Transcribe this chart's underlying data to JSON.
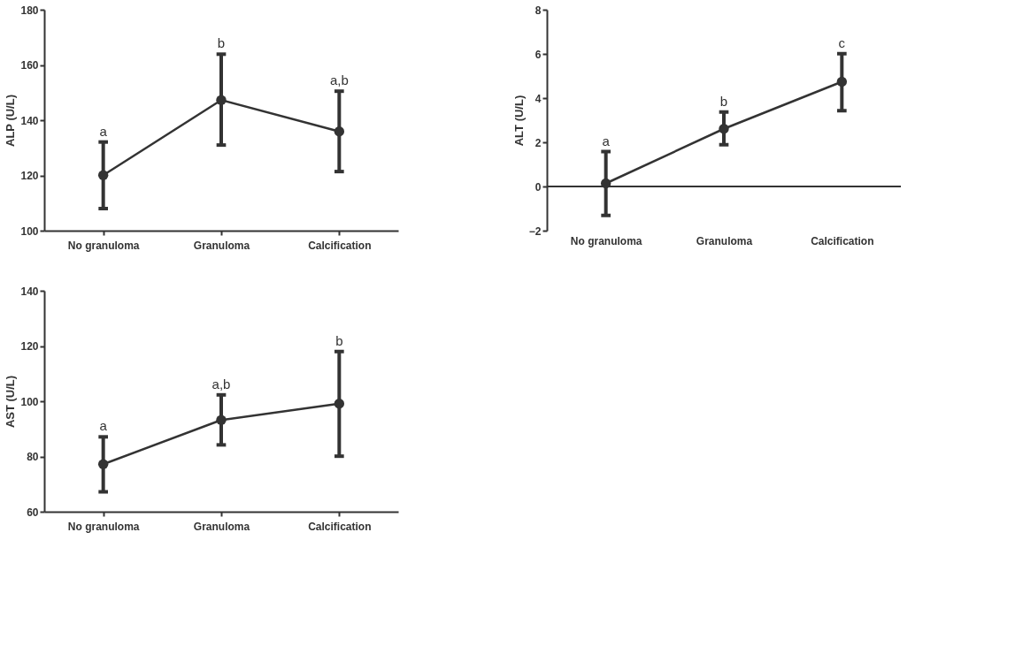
{
  "chart_data": [
    {
      "type": "line",
      "ylabel": "ALP (U/L)",
      "categories": [
        "No granuloma",
        "Granuloma",
        "Calcification"
      ],
      "ylim": [
        100,
        180
      ],
      "yticks": [
        100,
        120,
        140,
        160,
        180
      ],
      "grid": false,
      "marker": "circle",
      "line_style": "solid",
      "series": [
        {
          "color": "#333333",
          "values": [
            120.1,
            147.3,
            135.9
          ],
          "errors": [
            [
              108.0,
              132.1
            ],
            [
              131.0,
              163.9
            ],
            [
              121.4,
              150.5
            ]
          ]
        }
      ],
      "annotations": [
        "a",
        "b",
        "a,b"
      ]
    },
    {
      "type": "line",
      "ylabel": "ALT (U/L)",
      "categories": [
        "No granuloma",
        "Granuloma",
        "Calcification"
      ],
      "ylim": [
        -2,
        8
      ],
      "yticks": [
        -2,
        0,
        2,
        4,
        6,
        8
      ],
      "grid": false,
      "marker": "circle",
      "line_style": "solid",
      "series": [
        {
          "color": "#333333",
          "values": [
            0.14,
            2.61,
            4.74
          ],
          "errors": [
            [
              -1.31,
              1.58
            ],
            [
              1.89,
              3.37
            ],
            [
              3.43,
              6.01
            ]
          ]
        }
      ],
      "ref_lines": [
        {
          "axis": "y",
          "value": 0,
          "color": "#333333"
        }
      ],
      "annotations": [
        "a",
        "b",
        "c"
      ]
    },
    {
      "type": "line",
      "ylabel": "AST (U/L)",
      "categories": [
        "No granuloma",
        "Granuloma",
        "Calcification"
      ],
      "ylim": [
        60,
        140
      ],
      "yticks": [
        60,
        80,
        100,
        120,
        140
      ],
      "grid": false,
      "marker": "circle",
      "line_style": "solid",
      "series": [
        {
          "color": "#333333",
          "values": [
            77.2,
            93.2,
            99.1
          ],
          "errors": [
            [
              67.2,
              87.1
            ],
            [
              84.2,
              102.3
            ],
            [
              80.1,
              118.0
            ]
          ]
        }
      ],
      "annotations": [
        "a",
        "a,b",
        "b"
      ]
    }
  ]
}
